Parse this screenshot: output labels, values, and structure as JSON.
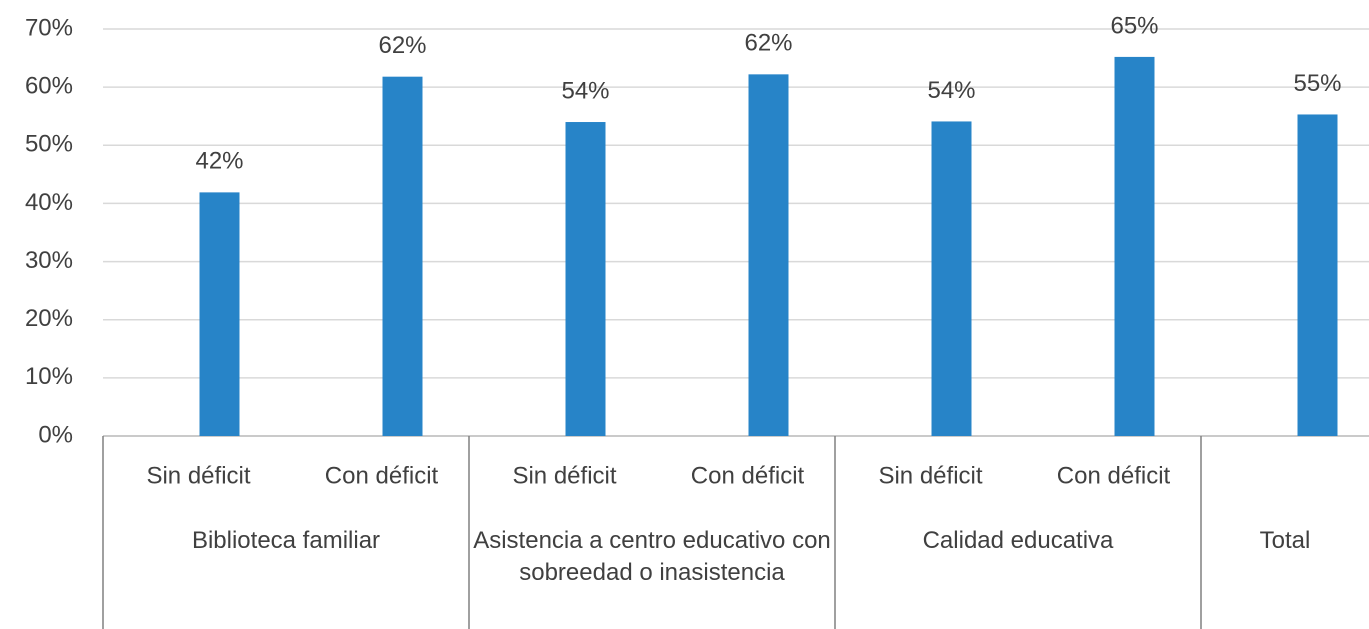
{
  "chart_data": {
    "type": "bar",
    "categories": [
      "Sin déficit",
      "Con déficit",
      "Sin déficit",
      "Con déficit",
      "Sin déficit",
      "Con déficit",
      null
    ],
    "groups": [
      {
        "name": "Biblioteca familiar",
        "span": 2
      },
      {
        "name": "Asistencia a centro educativo con sobreedad o inasistencia",
        "span": 2
      },
      {
        "name": "Calidad educativa",
        "span": 2
      },
      {
        "name": "Total",
        "span": 1
      }
    ],
    "values": [
      41.9,
      61.8,
      54,
      62.2,
      54.1,
      65.2,
      55.3
    ],
    "value_labels": [
      "42%",
      "62%",
      "54%",
      "62%",
      "54%",
      "65%",
      "55%"
    ],
    "color": "#2784c8",
    "ylim": [
      0,
      70
    ],
    "yticks": [
      {
        "value": 0,
        "label": "0%"
      },
      {
        "value": 10,
        "label": "10%"
      },
      {
        "value": 20,
        "label": "20%"
      },
      {
        "value": 30,
        "label": "30%"
      },
      {
        "value": 40,
        "label": "40%"
      },
      {
        "value": 50,
        "label": "50%"
      },
      {
        "value": 60,
        "label": "60%"
      },
      {
        "value": 70,
        "label": "70%"
      }
    ],
    "grid": true
  }
}
